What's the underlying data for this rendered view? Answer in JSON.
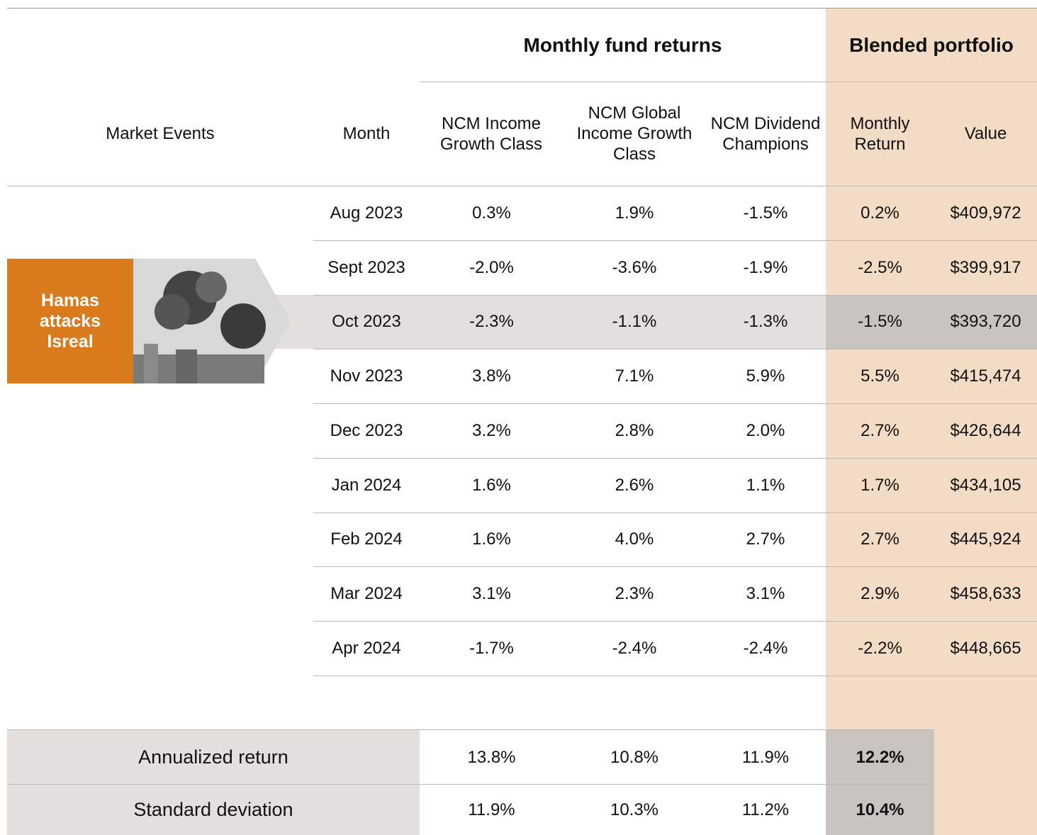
{
  "header": {
    "group_fund": "Monthly fund returns",
    "group_blended": "Blended portfolio"
  },
  "columns": [
    "Market Events",
    "Month",
    "NCM Income Growth Class",
    "NCM Global Income Growth Class",
    "NCM Dividend Champions",
    "Monthly Return",
    "Value"
  ],
  "event": {
    "label": "Hamas attacks Isreal"
  },
  "table": {
    "rows": [
      [
        "Aug 2023",
        "0.3%",
        "1.9%",
        "-1.5%",
        "0.2%",
        "$409,972"
      ],
      [
        "Sept 2023",
        "-2.0%",
        "-3.6%",
        "-1.9%",
        "-2.5%",
        "$399,917"
      ],
      [
        "Oct 2023",
        "-2.3%",
        "-1.1%",
        "-1.3%",
        "-1.5%",
        "$393,720"
      ],
      [
        "Nov 2023",
        "3.8%",
        "7.1%",
        "5.9%",
        "5.5%",
        "$415,474"
      ],
      [
        "Dec 2023",
        "3.2%",
        "2.8%",
        "2.0%",
        "2.7%",
        "$426,644"
      ],
      [
        "Jan 2024",
        "1.6%",
        "2.6%",
        "1.1%",
        "1.7%",
        "$434,105"
      ],
      [
        "Feb 2024",
        "1.6%",
        "4.0%",
        "2.7%",
        "2.7%",
        "$445,924"
      ],
      [
        "Mar 2024",
        "3.1%",
        "2.3%",
        "3.1%",
        "2.9%",
        "$458,633"
      ],
      [
        "Apr 2024",
        "-1.7%",
        "-2.4%",
        "-2.4%",
        "-2.2%",
        "$448,665"
      ]
    ]
  },
  "summary": {
    "rows": [
      [
        "Annualized return",
        "13.8%",
        "10.8%",
        "11.9%",
        "12.2%"
      ],
      [
        "Standard deviation",
        "11.9%",
        "10.3%",
        "11.2%",
        "10.4%"
      ]
    ]
  }
}
